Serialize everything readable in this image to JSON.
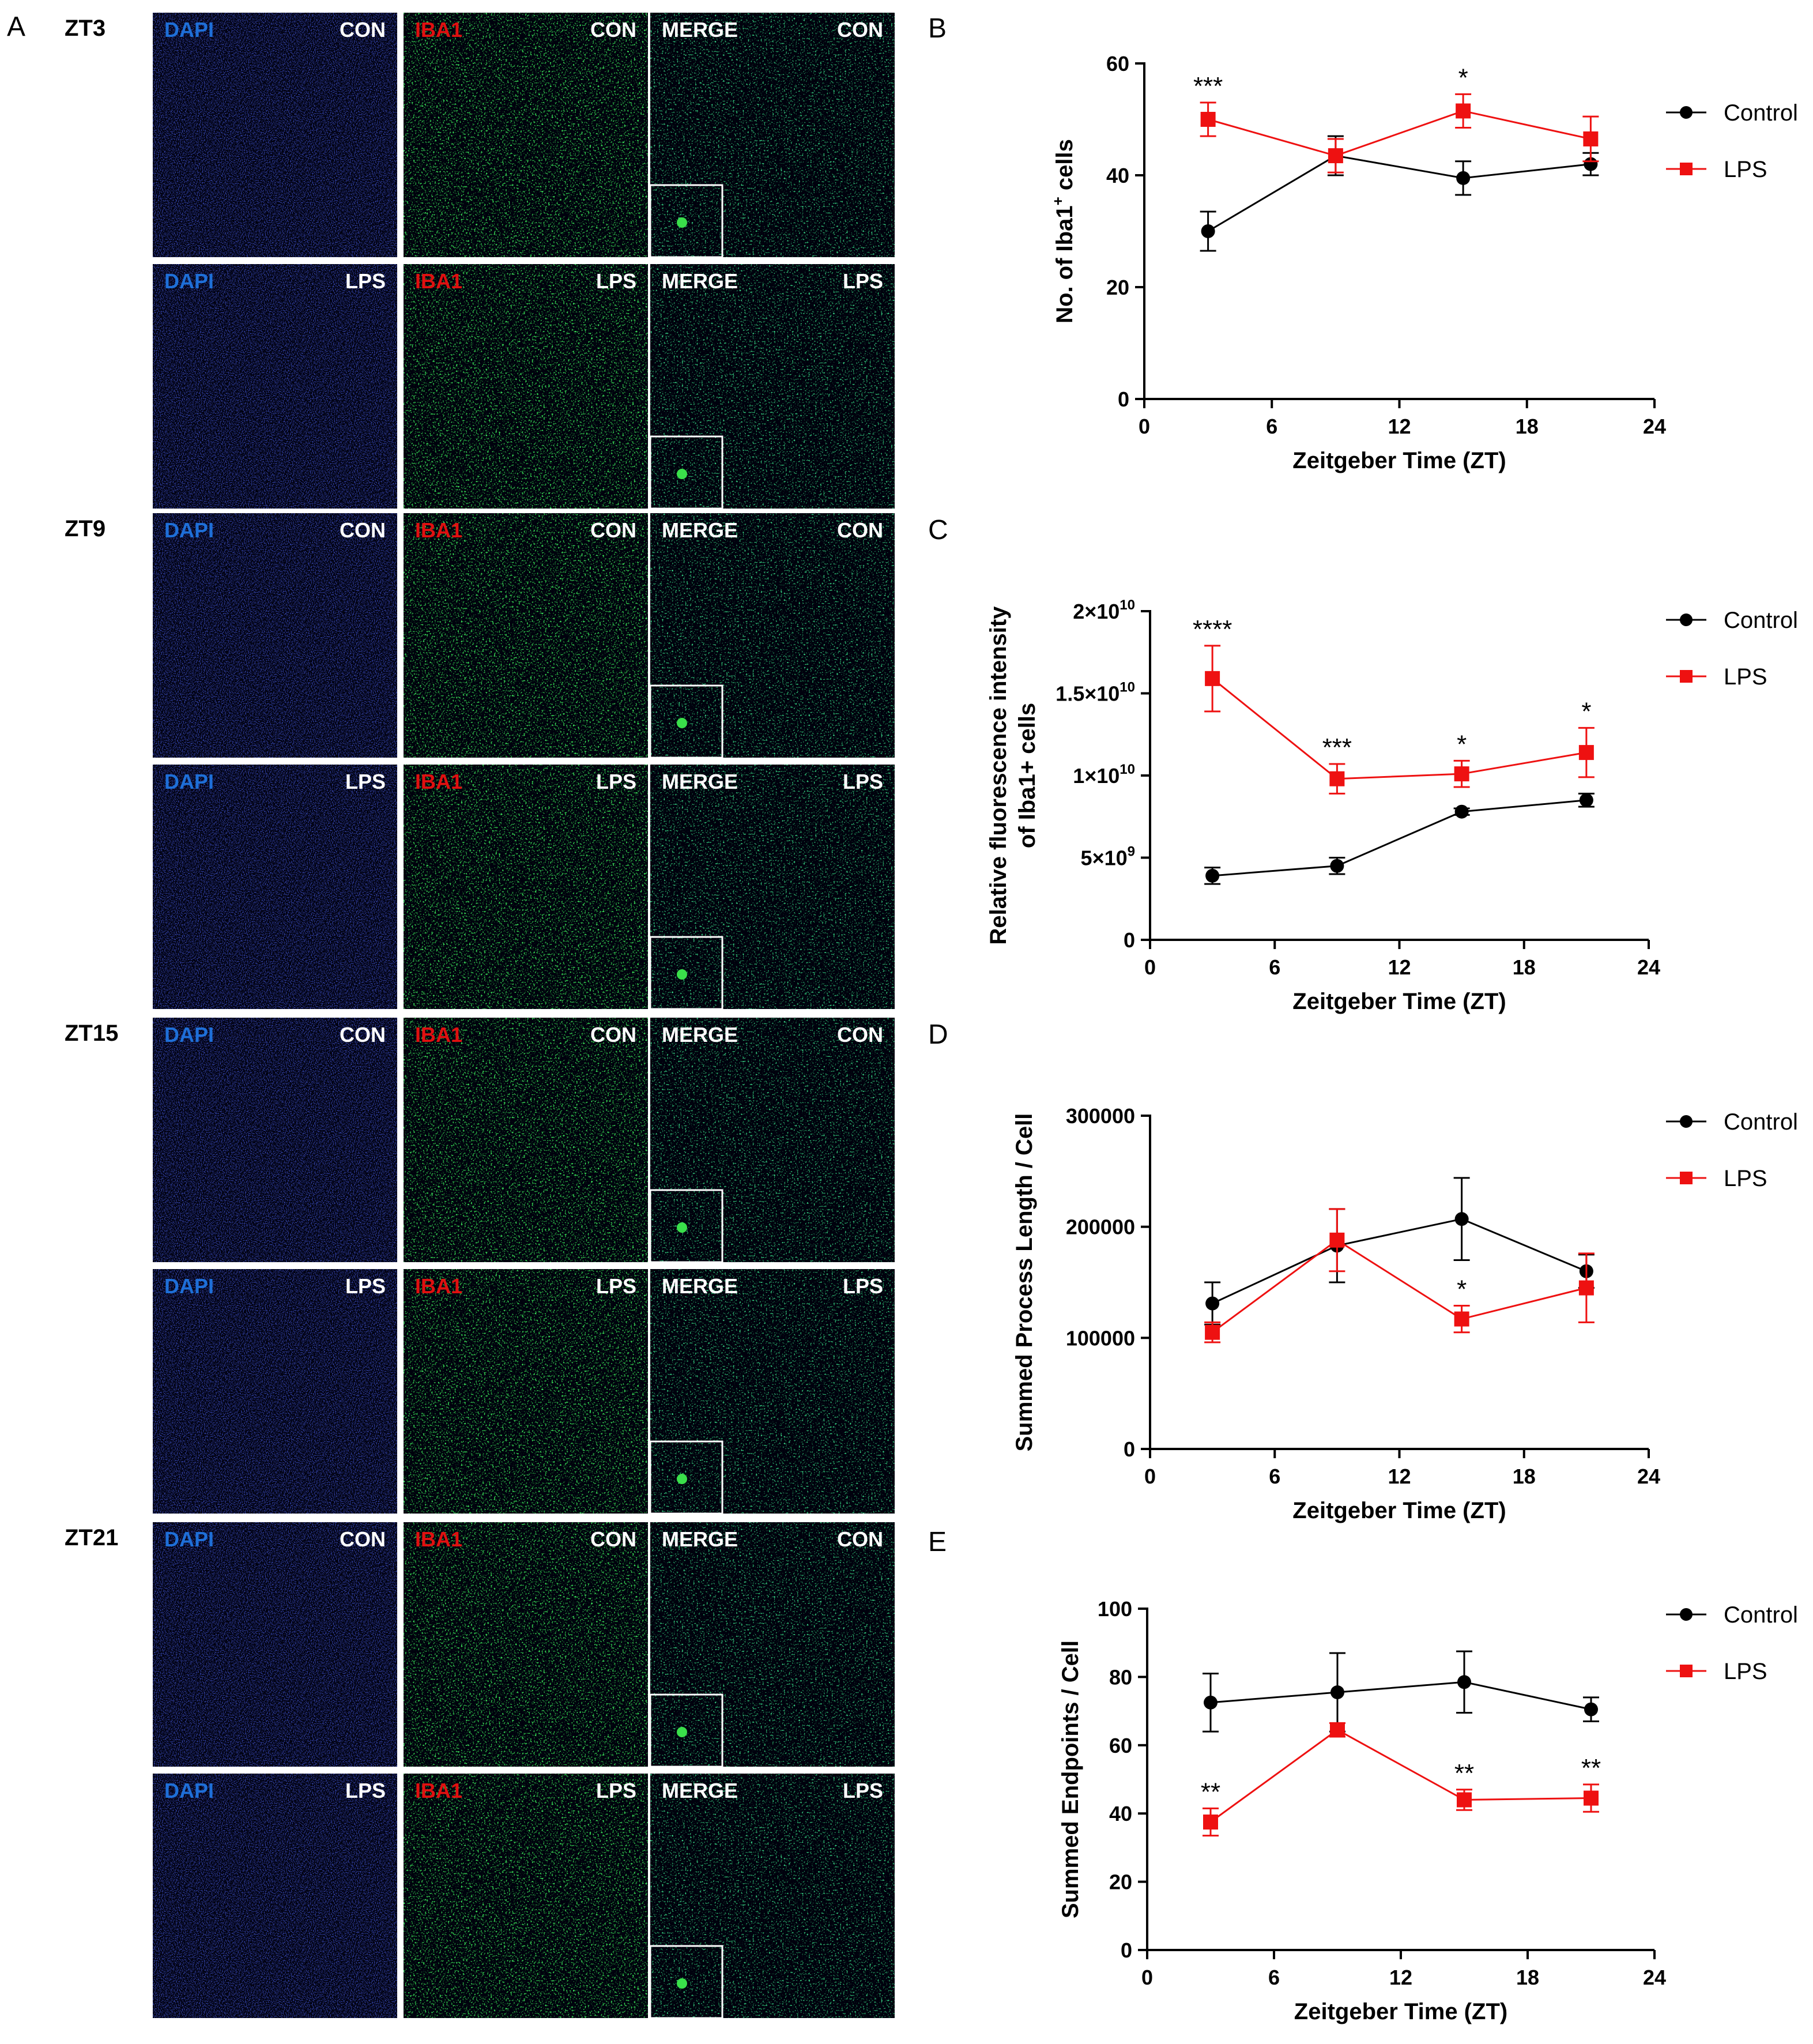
{
  "figure": {
    "panel_a_letter": "A",
    "microscopy": {
      "rows": [
        {
          "time": "ZT3",
          "conditions": [
            "CON",
            "LPS"
          ]
        },
        {
          "time": "ZT9",
          "conditions": [
            "CON",
            "LPS"
          ]
        },
        {
          "time": "ZT15",
          "conditions": [
            "CON",
            "LPS"
          ]
        },
        {
          "time": "ZT21",
          "conditions": [
            "CON",
            "LPS"
          ]
        }
      ],
      "channels": [
        "DAPI",
        "IBA1",
        "MERGE"
      ],
      "channel_colors": {
        "DAPI": "#1e6fd8",
        "IBA1": "#e01010",
        "MERGE": "#ffffff"
      },
      "condition_color": "#ffffff"
    },
    "colors": {
      "control": "#000000",
      "lps": "#ee1111"
    }
  },
  "chart_data": [
    {
      "panel": "B",
      "type": "line",
      "title": "",
      "xlabel": "Zeitgeber Time (ZT)",
      "ylabel": "No. of Iba1",
      "ylabel_sup": "+",
      "ylabel_suffix": " cells",
      "xlim": [
        0,
        24
      ],
      "ylim": [
        0,
        60
      ],
      "xticks": [
        0,
        6,
        12,
        18,
        24
      ],
      "yticks": [
        0,
        20,
        40,
        60
      ],
      "ytick_labels": [
        "0",
        "20",
        "40",
        "60"
      ],
      "series": [
        {
          "name": "Control",
          "x": [
            3,
            9,
            15,
            21
          ],
          "y": [
            30,
            43.5,
            39.5,
            42
          ],
          "err": [
            3.5,
            3.5,
            3,
            2
          ]
        },
        {
          "name": "LPS",
          "x": [
            3,
            9,
            15,
            21
          ],
          "y": [
            50,
            43.5,
            51.5,
            46.5
          ],
          "err": [
            3,
            3,
            3,
            4
          ]
        }
      ],
      "annotations": [
        {
          "x": 3,
          "text": "***"
        },
        {
          "x": 15,
          "text": "*"
        }
      ],
      "legend": "top-right"
    },
    {
      "panel": "C",
      "type": "line",
      "title": "",
      "xlabel": "Zeitgeber Time (ZT)",
      "ylabel_line1": "Relative fluorescence intensity",
      "ylabel_line2": "of Iba1+ cells",
      "xlim": [
        0,
        24
      ],
      "ylim": [
        0,
        20000000000
      ],
      "xticks": [
        0,
        6,
        12,
        18,
        24
      ],
      "yticks": [
        0,
        5000000000,
        10000000000,
        15000000000,
        20000000000
      ],
      "ytick_labels": [
        {
          "base": "0",
          "exp": ""
        },
        {
          "base": "5×10",
          "exp": "9"
        },
        {
          "base": "1×10",
          "exp": "10"
        },
        {
          "base": "1.5×10",
          "exp": "10"
        },
        {
          "base": "2×10",
          "exp": "10"
        }
      ],
      "series": [
        {
          "name": "Control",
          "x": [
            3,
            9,
            15,
            21
          ],
          "y": [
            3900000000,
            4500000000,
            7800000000,
            8500000000
          ],
          "err": [
            500000000,
            500000000,
            200000000,
            400000000
          ]
        },
        {
          "name": "LPS",
          "x": [
            3,
            9,
            15,
            21
          ],
          "y": [
            15900000000,
            9800000000,
            10100000000,
            11400000000
          ],
          "err": [
            2000000000,
            900000000,
            800000000,
            1500000000
          ]
        }
      ],
      "annotations": [
        {
          "x": 3,
          "text": "****"
        },
        {
          "x": 9,
          "text": "***"
        },
        {
          "x": 15,
          "text": "*"
        },
        {
          "x": 21,
          "text": "*"
        }
      ],
      "legend": "top-right"
    },
    {
      "panel": "D",
      "type": "line",
      "title": "",
      "xlabel": "Zeitgeber Time (ZT)",
      "ylabel": "Summed Process Length / Cell",
      "xlim": [
        0,
        24
      ],
      "ylim": [
        0,
        300000
      ],
      "xticks": [
        0,
        6,
        12,
        18,
        24
      ],
      "yticks": [
        0,
        100000,
        200000,
        300000
      ],
      "ytick_labels": [
        "0",
        "100000",
        "200000",
        "300000"
      ],
      "series": [
        {
          "name": "Control",
          "x": [
            3,
            9,
            15,
            21
          ],
          "y": [
            131000,
            183000,
            207000,
            160000
          ],
          "err": [
            19000,
            33000,
            37000,
            15000
          ]
        },
        {
          "name": "LPS",
          "x": [
            3,
            9,
            15,
            21
          ],
          "y": [
            105000,
            188000,
            117000,
            145000
          ],
          "err": [
            9000,
            28000,
            12000,
            31000
          ]
        }
      ],
      "annotations": [
        {
          "x": 15,
          "text": "*"
        }
      ],
      "legend": "top-right"
    },
    {
      "panel": "E",
      "type": "line",
      "title": "",
      "xlabel": "Zeitgeber Time (ZT)",
      "ylabel": "Summed Endpoints / Cell",
      "xlim": [
        0,
        24
      ],
      "ylim": [
        0,
        100
      ],
      "xticks": [
        0,
        6,
        12,
        18,
        24
      ],
      "yticks": [
        0,
        20,
        40,
        60,
        80,
        100
      ],
      "ytick_labels": [
        "0",
        "20",
        "40",
        "60",
        "80",
        "100"
      ],
      "series": [
        {
          "name": "Control",
          "x": [
            3,
            9,
            15,
            21
          ],
          "y": [
            72.5,
            75.5,
            78.5,
            70.5
          ],
          "err": [
            8.5,
            11.5,
            9,
            3.5
          ]
        },
        {
          "name": "LPS",
          "x": [
            3,
            9,
            15,
            21
          ],
          "y": [
            37.5,
            64.5,
            44,
            44.5
          ],
          "err": [
            4,
            2,
            3,
            4
          ]
        }
      ],
      "annotations": [
        {
          "x": 3,
          "text": "**"
        },
        {
          "x": 15,
          "text": "**"
        },
        {
          "x": 21,
          "text": "**"
        }
      ],
      "legend": "top-right"
    }
  ]
}
